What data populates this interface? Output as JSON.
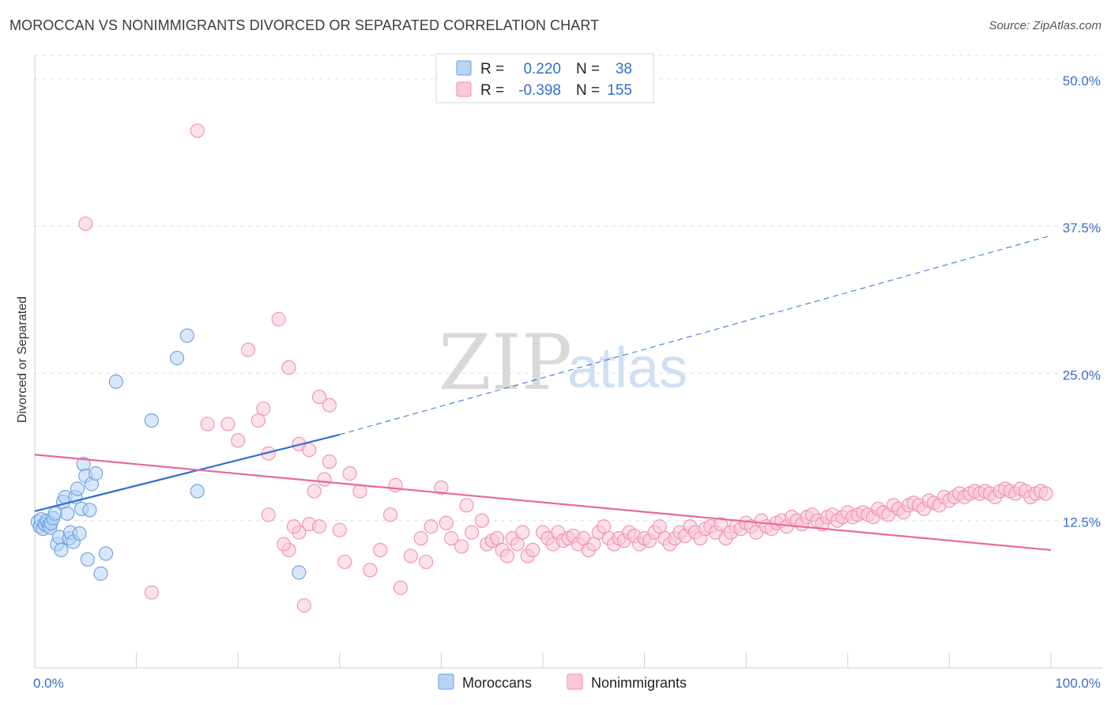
{
  "title": "MOROCCAN VS NONIMMIGRANTS DIVORCED OR SEPARATED CORRELATION CHART",
  "source": "Source: ZipAtlas.com",
  "watermark": {
    "zip": "ZIP",
    "atlas": "atlas"
  },
  "legend": {
    "r_label": "R =",
    "n_label": "N =",
    "rows": [
      {
        "series": "Moroccans",
        "r": "0.220",
        "n": "38"
      },
      {
        "series": "Nonimmigrants",
        "r": "-0.398",
        "n": "155"
      }
    ]
  },
  "colors": {
    "moroccans_fill": "#b7d3f5",
    "moroccans_stroke": "#6c9ee0",
    "moroccans_line": "#2f6fd1",
    "nonimmigrants_fill": "#f9c9d7",
    "nonimmigrants_stroke": "#ee8fb0",
    "nonimmigrants_line": "#e8689a",
    "grid": "#e0e0e0",
    "tick_text": "#3a6fc4"
  },
  "chart_data": {
    "type": "scatter",
    "title": "MOROCCAN VS NONIMMIGRANTS DIVORCED OR SEPARATED CORRELATION CHART",
    "xlabel": "",
    "ylabel": "Divorced or Separated",
    "xlim": [
      0,
      100
    ],
    "ylim": [
      0,
      52
    ],
    "x_tick_labels": [
      "0.0%",
      "100.0%"
    ],
    "y_ticks": [
      12.5,
      25.0,
      37.5,
      50.0
    ],
    "y_tick_labels": [
      "12.5%",
      "25.0%",
      "37.5%",
      "50.0%"
    ],
    "grid": true,
    "legend_position": "bottom-center",
    "series": [
      {
        "name": "Moroccans",
        "x": [
          0.3,
          0.5,
          0.6,
          0.8,
          1.0,
          1.2,
          1.4,
          1.5,
          1.6,
          1.8,
          2.0,
          2.2,
          2.4,
          2.6,
          2.8,
          3.0,
          3.2,
          3.4,
          3.5,
          3.8,
          4.0,
          4.2,
          4.4,
          4.6,
          4.8,
          5.0,
          5.2,
          5.4,
          5.6,
          6.0,
          6.5,
          7.0,
          8.0,
          11.5,
          14.0,
          15.0,
          16.0,
          26.0
        ],
        "y": [
          12.4,
          12.0,
          12.6,
          11.8,
          12.2,
          12.5,
          12.1,
          11.9,
          12.3,
          12.7,
          13.1,
          10.5,
          11.1,
          10.0,
          14.1,
          14.5,
          13.1,
          11.0,
          11.5,
          10.7,
          14.5,
          15.2,
          11.4,
          13.5,
          17.3,
          16.3,
          9.2,
          13.4,
          15.6,
          16.5,
          8.0,
          9.7,
          24.3,
          21.0,
          26.3,
          28.2,
          15.0,
          8.1
        ]
      },
      {
        "name": "Nonimmigrants",
        "x": [
          5,
          11.5,
          16,
          17,
          19,
          22.5,
          23,
          25,
          26,
          27,
          28,
          29,
          30,
          30.5,
          31,
          32,
          33,
          34,
          35,
          35.5,
          36,
          37,
          38,
          38.5,
          39,
          40,
          40.5,
          41,
          42,
          42.5,
          43,
          44,
          44.5,
          45,
          45.5,
          46,
          46.5,
          47,
          47.5,
          48,
          48.5,
          49,
          50,
          50.5,
          51,
          51.5,
          52,
          52.5,
          53,
          53.5,
          54,
          54.5,
          55,
          55.5,
          56,
          56.5,
          57,
          57.5,
          58,
          58.5,
          59,
          59.5,
          60,
          60.5,
          61,
          61.5,
          62,
          62.5,
          63,
          63.5,
          64,
          64.5,
          65,
          65.5,
          66,
          66.5,
          67,
          67.5,
          68,
          68.5,
          69,
          69.5,
          70,
          70.5,
          71,
          71.5,
          72,
          72.5,
          73,
          73.5,
          74,
          74.5,
          75,
          75.5,
          76,
          76.5,
          77,
          77.5,
          78,
          78.5,
          79,
          79.5,
          80,
          80.5,
          81,
          81.5,
          82,
          82.5,
          83,
          83.5,
          84,
          84.5,
          85,
          85.5,
          86,
          86.5,
          87,
          87.5,
          88,
          88.5,
          89,
          89.5,
          90,
          90.5,
          91,
          91.5,
          92,
          92.5,
          93,
          93.5,
          94,
          94.5,
          95,
          95.5,
          96,
          96.5,
          97,
          97.5,
          98,
          98.5,
          99,
          99.5,
          24,
          25,
          26,
          27,
          28,
          29,
          20,
          21,
          22,
          23,
          24.5,
          25.5,
          26.5,
          27.5,
          28.5
        ],
        "y": [
          37.7,
          6.4,
          45.6,
          20.7,
          20.7,
          22.0,
          13.0,
          10.0,
          11.5,
          12.2,
          12.0,
          17.5,
          11.7,
          9.0,
          16.5,
          15.0,
          8.3,
          10.0,
          13.0,
          15.5,
          6.8,
          9.5,
          11.0,
          9.0,
          12.0,
          15.3,
          12.3,
          11.0,
          10.3,
          13.8,
          11.5,
          12.5,
          10.5,
          10.8,
          11.0,
          10.0,
          9.5,
          11.0,
          10.5,
          11.5,
          9.5,
          10.0,
          11.5,
          11.0,
          10.5,
          11.5,
          10.8,
          11.0,
          11.2,
          10.5,
          11.0,
          10.0,
          10.5,
          11.5,
          12.0,
          11.0,
          10.5,
          11.0,
          10.8,
          11.5,
          11.2,
          10.5,
          11.0,
          10.8,
          11.5,
          12.0,
          11.0,
          10.5,
          11.0,
          11.5,
          11.2,
          12.0,
          11.5,
          11.0,
          11.8,
          12.0,
          11.5,
          12.2,
          11.0,
          11.5,
          12.0,
          11.8,
          12.3,
          12.0,
          11.5,
          12.5,
          12.0,
          11.8,
          12.3,
          12.5,
          12.0,
          12.8,
          12.5,
          12.2,
          12.8,
          13.0,
          12.5,
          12.2,
          12.8,
          13.0,
          12.5,
          12.8,
          13.2,
          12.8,
          13.0,
          13.2,
          13.0,
          12.8,
          13.5,
          13.2,
          13.0,
          13.8,
          13.5,
          13.2,
          13.8,
          14.0,
          13.8,
          13.5,
          14.2,
          14.0,
          13.8,
          14.5,
          14.2,
          14.5,
          14.8,
          14.5,
          14.8,
          15.0,
          14.8,
          15.0,
          14.8,
          14.5,
          15.0,
          15.2,
          15.0,
          14.8,
          15.2,
          15.0,
          14.5,
          14.8,
          15.0,
          14.8,
          29.6,
          25.5,
          19.0,
          18.5,
          23.0,
          22.3,
          19.3,
          27.0,
          21.0,
          18.2,
          10.5,
          12.0,
          5.3,
          15.0,
          16.0
        ]
      }
    ],
    "trendlines": [
      {
        "series": "Moroccans",
        "x0": 0,
        "y0": 13.3,
        "x1": 30,
        "y1": 19.8,
        "dashed_to_x": 100,
        "dashed_to_y": 36.7
      },
      {
        "series": "Nonimmigrants",
        "x0": 0,
        "y0": 18.1,
        "x1": 100,
        "y1": 10.0
      }
    ]
  }
}
